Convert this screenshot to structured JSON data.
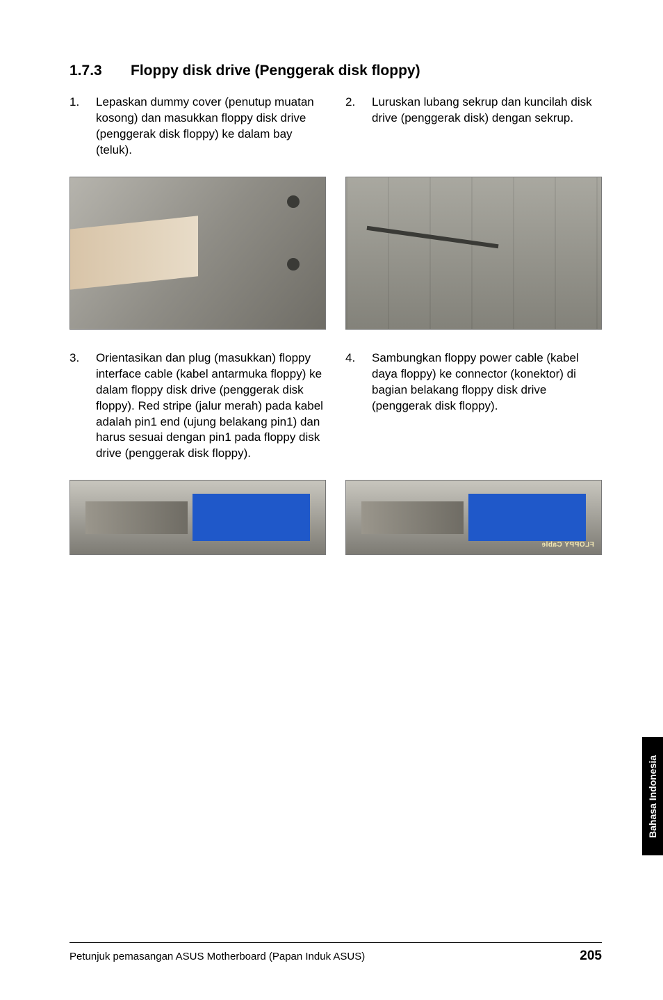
{
  "section": {
    "number": "1.7.3",
    "title": "Floppy disk drive (Penggerak disk floppy)"
  },
  "steps": {
    "s1": {
      "num": "1.",
      "text": "Lepaskan dummy cover (penutup muatan kosong) dan masukkan floppy disk drive (penggerak disk floppy) ke dalam bay (teluk)."
    },
    "s2": {
      "num": "2.",
      "text": "Luruskan lubang sekrup dan kuncilah disk drive (penggerak disk) dengan sekrup."
    },
    "s3": {
      "num": "3.",
      "text": "Orientasikan dan plug (masukkan) floppy interface cable (kabel antarmuka floppy) ke dalam floppy disk drive (penggerak disk floppy). Red stripe (jalur merah) pada kabel adalah pin1 end (ujung belakang pin1) dan harus sesuai dengan pin1 pada floppy disk drive (penggerak disk floppy)."
    },
    "s4": {
      "num": "4.",
      "text": "Sambungkan floppy power cable (kabel daya floppy) ke connector (konektor) di bagian belakang floppy disk drive (penggerak disk floppy)."
    }
  },
  "photo4_label": "FLOPPY Cable",
  "side_tab": "Bahasa Indonesia",
  "footer": {
    "text": "Petunjuk pemasangan ASUS Motherboard (Papan Induk ASUS)",
    "page": "205"
  }
}
